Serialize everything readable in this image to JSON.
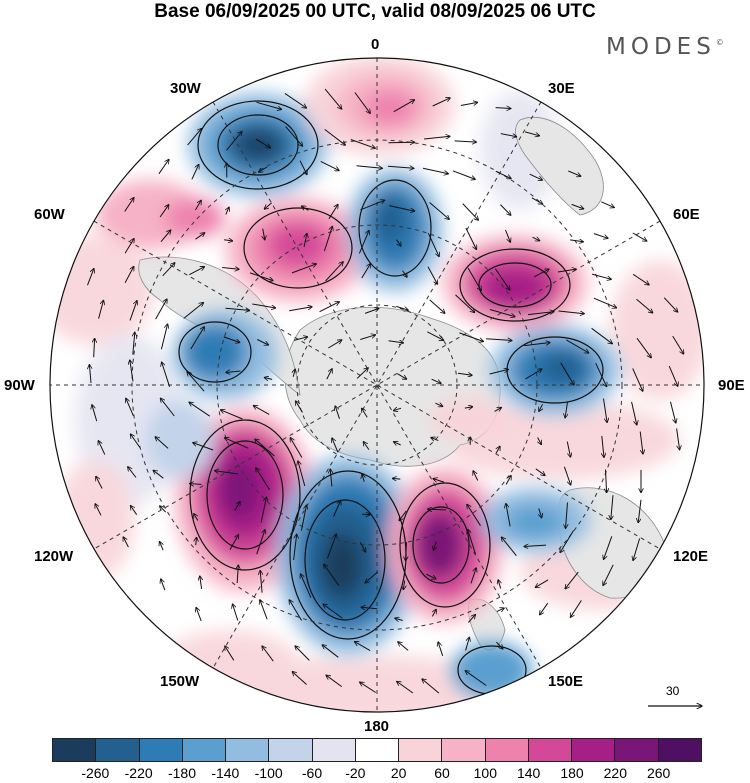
{
  "title": "Base 06/09/2025 00 UTC, valid 08/09/2025 06 UTC",
  "brand": "MODES",
  "brand_mark": "©",
  "map": {
    "projection": "south polar stereographic",
    "meridian_labels": {
      "lon_0": "0",
      "lon_30e": "30E",
      "lon_60e": "60E",
      "lon_90e": "90E",
      "lon_120e": "120E",
      "lon_150e": "150E",
      "lon_180": "180",
      "lon_150w": "150W",
      "lon_120w": "120W",
      "lon_90w": "90W",
      "lon_60w": "60W",
      "lon_30w": "30W"
    },
    "reference_vector": "30"
  },
  "colorbar": {
    "ticks": [
      "-260",
      "-220",
      "-180",
      "-140",
      "-100",
      "-60",
      "-20",
      "20",
      "60",
      "100",
      "140",
      "180",
      "220",
      "260"
    ],
    "colors": [
      "#1b3c5c",
      "#235f8f",
      "#2e7cb5",
      "#5a9fd0",
      "#93bde0",
      "#c3d3ea",
      "#e4e4f1",
      "#ffffff",
      "#f8d4d9",
      "#f6b2c6",
      "#ee82ad",
      "#d44898",
      "#a51f86",
      "#7a1677",
      "#4f0f62"
    ]
  },
  "colors": {
    "land": "#e6e6e6",
    "grid": "#333333",
    "arrow": "#111111",
    "contour": "#111111"
  }
}
